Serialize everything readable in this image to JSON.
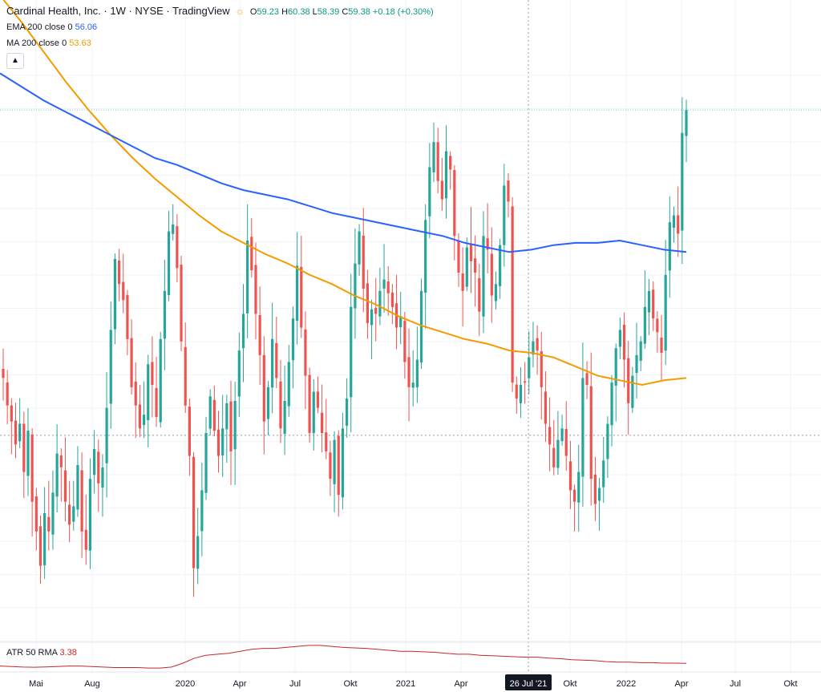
{
  "header": {
    "symbol_title": "Cardinal Health, Inc. · 1W · NYSE · TradingView",
    "ohlc": {
      "open_label": "O",
      "open": "59.23",
      "high_label": "H",
      "high": "60.38",
      "low_label": "L",
      "low": "58.39",
      "close_label": "C",
      "close": "59.38",
      "change": "+0.18 (+0.30%)"
    },
    "market_icon": "sun-icon"
  },
  "indicators": {
    "ema": {
      "label": "EMA 200 close 0",
      "value": "56.06",
      "color": "#2962ff"
    },
    "ma": {
      "label": "MA 200 close 0",
      "value": "53.63",
      "color": "#f59b00"
    },
    "atr": {
      "label": "ATR 50 RMA",
      "value": "3.38",
      "color": "#c62828"
    }
  },
  "collapse_icon": "chevron-up-icon",
  "crosshair_label": "26 Jul '21",
  "chart_data": {
    "type": "candlestick",
    "up_color": "#26a69a",
    "down_color": "#ef5350",
    "ylim": [
      38,
      66
    ],
    "x_ticks": [
      "Mai",
      "Aug",
      "2020",
      "Apr",
      "Jul",
      "Okt",
      "2021",
      "Apr",
      "Okt",
      "2022",
      "Apr",
      "Jul",
      "Okt"
    ],
    "closes": [
      49.5,
      48.3,
      47.6,
      46.6,
      47.5,
      45.4,
      47.2,
      44.1,
      42.8,
      41.3,
      43.6,
      42.8,
      44.5,
      46.2,
      45.6,
      44.1,
      43.1,
      43.9,
      45.7,
      42.8,
      42.0,
      45.1,
      46.4,
      44.9,
      45.6,
      48.2,
      51.6,
      54.7,
      53.6,
      52.9,
      51.2,
      49.1,
      48.3,
      47.3,
      47.9,
      50.1,
      49.2,
      47.8,
      51.2,
      53.3,
      55.9,
      56.2,
      54.3,
      51.1,
      48.3,
      46.1,
      41.2,
      42.6,
      44.6,
      47.1,
      48.7,
      47.2,
      46.1,
      47.3,
      48.4,
      46.3,
      48.5,
      50.7,
      52.3,
      55.5,
      54.2,
      52.3,
      50.5,
      47.6,
      49.1,
      51.2,
      49.5,
      47.3,
      48.5,
      50.2,
      52.1,
      54.4,
      51.7,
      49.6,
      47.1,
      48.9,
      48.2,
      47.1,
      46.3,
      45.1,
      46.8,
      44.4,
      47.3,
      48.6,
      52.6,
      54.5,
      55.9,
      53.4,
      51.9,
      52.5,
      52.3,
      53.3,
      53.8,
      53.2,
      52.6,
      51.7,
      52.2,
      50.2,
      49.1,
      49.3,
      50.3,
      53.3,
      56.4,
      58.7,
      59.8,
      58.1,
      57.3,
      59.4,
      58.6,
      55.7,
      54.1,
      53.3,
      55.2,
      54.6,
      54.1,
      52.4,
      55.7,
      55.1,
      53.1,
      53.6,
      55.3,
      57.9,
      57.2,
      49.3,
      48.6,
      49.2,
      49.3,
      50.4,
      51.1,
      50.7,
      49.1,
      47.5,
      46.6,
      45.6,
      46.8,
      47.3,
      46.1,
      44.6,
      44.1,
      45.4,
      49.5,
      49.2,
      45.1,
      44.0,
      44.7,
      45.9,
      47.5,
      49.3,
      50.8,
      51.6,
      50.3,
      48.4,
      49.6,
      50.5,
      51.1,
      52.6,
      53.3,
      52.1,
      51.5,
      50.6,
      54.0,
      56.3,
      56.6,
      55.8,
      60.2,
      61.2
    ],
    "ema_200": [
      62.8,
      62.2,
      61.6,
      61.1,
      60.6,
      60.1,
      59.6,
      59.1,
      58.8,
      58.4,
      58.0,
      57.7,
      57.5,
      57.3,
      57.0,
      56.7,
      56.5,
      56.3,
      56.1,
      55.9,
      55.7,
      55.4,
      55.2,
      55.0,
      55.1,
      55.3,
      55.4,
      55.4,
      55.5,
      55.3,
      55.1,
      55.0
    ],
    "ma_200": [
      66.2,
      65.0,
      63.7,
      62.4,
      61.2,
      60.1,
      59.1,
      58.2,
      57.4,
      56.6,
      55.9,
      55.4,
      54.9,
      54.5,
      54.0,
      53.6,
      53.1,
      52.7,
      52.2,
      51.8,
      51.5,
      51.2,
      51.0,
      50.7,
      50.6,
      50.4,
      50.0,
      49.6,
      49.4,
      49.2,
      49.4,
      49.5
    ],
    "atr_50": [
      2.1,
      2.05,
      2.0,
      1.98,
      2.01,
      2.05,
      2.1,
      2.1,
      2.05,
      2.0,
      1.95,
      1.95,
      1.95,
      1.9,
      1.9,
      2.0,
      2.4,
      2.9,
      3.2,
      3.3,
      3.4,
      3.6,
      3.8,
      3.9,
      3.9,
      4.0,
      4.1,
      4.2,
      4.2,
      4.1,
      4.0,
      3.95,
      3.9,
      3.8,
      3.7,
      3.6,
      3.6,
      3.55,
      3.5,
      3.4,
      3.3,
      3.3,
      3.2,
      3.15,
      3.1,
      3.05,
      3.0,
      3.0,
      2.9,
      2.85,
      2.75,
      2.7,
      2.65,
      2.55,
      2.5,
      2.5,
      2.45,
      2.45,
      2.4,
      2.4,
      2.38
    ],
    "last_close_line": 61.2,
    "marked_price_line": 47.0
  }
}
